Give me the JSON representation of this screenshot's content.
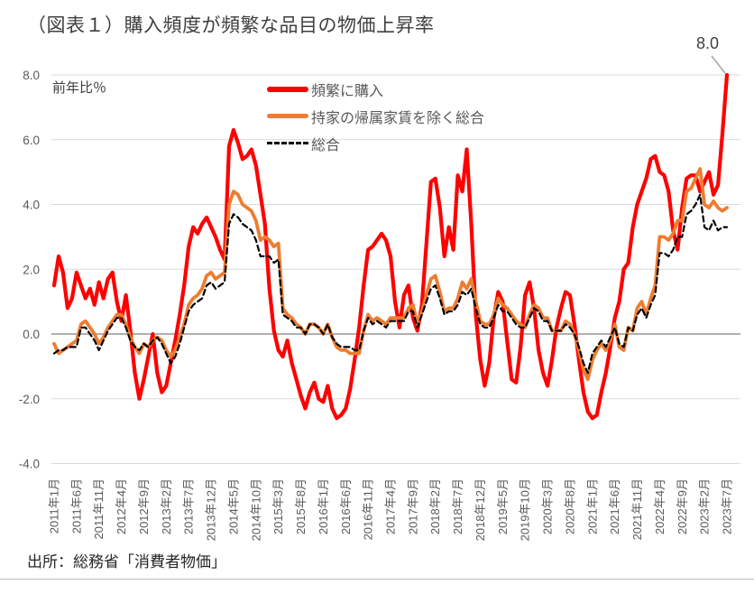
{
  "page": {
    "title": "（図表１）購入頻度が頻繁な品目の物価上昇率",
    "source": "出所：総務省「消費者物価」"
  },
  "annotation": {
    "text": "8.0"
  },
  "colors": {
    "red_series": "#ff0000",
    "orange_series": "#ed7d31",
    "black_series": "#000000",
    "gridline": "#d9d9d9",
    "zero_axis": "#7f7f7f",
    "tick_text": "#595959",
    "title_text": "#3f3f3f",
    "leader_line": "#a6a6a6"
  },
  "chart_data": {
    "type": "line",
    "title": "（図表１）購入頻度が頻繁な品目の物価上昇率",
    "xlabel": "",
    "ylabel": "前年比％",
    "ylim": [
      -4.0,
      8.0
    ],
    "yticks": [
      8,
      6,
      4,
      2,
      0,
      -2,
      -4
    ],
    "ytick_labels": [
      "8.0",
      "6.0",
      "4.0",
      "2.0",
      "0.0",
      "-2.0",
      "-4.0"
    ],
    "grid": "horizontal",
    "legend_position": "top-inside",
    "x_frequency": "monthly",
    "x_start": "2011年1月",
    "x_end": "2023年7月",
    "xtick_month_indices": [
      0,
      5,
      10,
      15,
      20,
      25,
      30,
      35,
      40,
      45,
      50,
      55,
      60,
      65,
      70,
      75,
      80,
      85,
      90,
      95,
      100,
      105,
      110,
      115,
      120,
      125,
      130,
      135,
      140,
      145,
      150
    ],
    "xtick_labels": [
      "2011年1月",
      "2011年6月",
      "2011年11月",
      "2012年4月",
      "2012年9月",
      "2013年2月",
      "2013年7月",
      "2013年12月",
      "2014年5月",
      "2014年10月",
      "2015年3月",
      "2015年8月",
      "2016年1月",
      "2016年6月",
      "2016年11月",
      "2017年4月",
      "2017年9月",
      "2018年2月",
      "2018年7月",
      "2018年12月",
      "2019年5月",
      "2019年10月",
      "2020年3月",
      "2020年8月",
      "2021年1月",
      "2021年6月",
      "2021年11月",
      "2022年4月",
      "2022年9月",
      "2023年2月",
      "2023年7月"
    ],
    "annotation": {
      "text": "8.0",
      "month_index": 150,
      "value": 8.0
    },
    "series": [
      {
        "name": "頻繁に購入",
        "color": "#ff0000",
        "width": 4.2,
        "dash": null,
        "values": [
          1.5,
          2.4,
          1.9,
          0.8,
          1.1,
          1.9,
          1.5,
          1.1,
          1.4,
          0.9,
          1.6,
          1.1,
          1.7,
          1.9,
          1.0,
          0.4,
          1.2,
          0.1,
          -1.2,
          -2.0,
          -1.4,
          -0.7,
          0.0,
          -1.2,
          -1.8,
          -1.6,
          -0.9,
          -0.2,
          0.6,
          1.5,
          2.7,
          3.3,
          3.1,
          3.4,
          3.6,
          3.3,
          3.0,
          2.6,
          2.3,
          5.8,
          6.3,
          5.9,
          5.4,
          5.5,
          5.7,
          5.2,
          4.3,
          3.4,
          1.4,
          0.1,
          -0.5,
          -0.7,
          -0.2,
          -0.9,
          -1.4,
          -1.9,
          -2.3,
          -1.8,
          -1.5,
          -2.0,
          -2.1,
          -1.6,
          -2.3,
          -2.6,
          -2.5,
          -2.3,
          -1.7,
          -0.8,
          0.2,
          1.5,
          2.6,
          2.7,
          2.9,
          3.1,
          2.9,
          2.4,
          1.0,
          0.2,
          1.2,
          1.5,
          0.5,
          0.1,
          0.9,
          2.8,
          4.7,
          4.8,
          3.9,
          2.4,
          3.3,
          2.6,
          4.9,
          4.4,
          5.7,
          3.4,
          0.6,
          -0.8,
          -1.6,
          -0.9,
          0.5,
          1.3,
          1.0,
          -0.2,
          -1.4,
          -1.5,
          -0.4,
          1.2,
          1.6,
          0.8,
          -0.5,
          -1.2,
          -1.6,
          -0.8,
          0.2,
          0.8,
          1.3,
          1.2,
          0.3,
          -0.8,
          -1.8,
          -2.4,
          -2.6,
          -2.5,
          -1.8,
          -1.2,
          -0.4,
          0.5,
          1.0,
          2.0,
          2.2,
          3.3,
          4.0,
          4.4,
          4.8,
          5.4,
          5.5,
          5.0,
          4.9,
          4.4,
          3.2,
          2.6,
          3.9,
          4.8,
          4.9,
          4.9,
          4.4,
          4.7,
          5.0,
          4.3,
          4.6,
          6.2,
          8.0
        ]
      },
      {
        "name": "持家の帰属家賃を除く総合",
        "color": "#ed7d31",
        "width": 3.8,
        "dash": null,
        "values": [
          -0.3,
          -0.6,
          -0.5,
          -0.4,
          -0.3,
          -0.2,
          0.3,
          0.4,
          0.2,
          0.0,
          -0.3,
          -0.1,
          0.2,
          0.4,
          0.6,
          0.6,
          0.3,
          -0.1,
          -0.4,
          -0.6,
          -0.3,
          -0.4,
          -0.2,
          -0.1,
          -0.2,
          -0.5,
          -0.7,
          -0.5,
          -0.1,
          0.3,
          0.9,
          1.1,
          1.2,
          1.4,
          1.8,
          1.9,
          1.7,
          1.8,
          1.9,
          4.0,
          4.4,
          4.3,
          4.0,
          3.9,
          3.8,
          3.5,
          2.9,
          3.0,
          2.9,
          2.7,
          2.8,
          0.8,
          0.6,
          0.5,
          0.3,
          0.2,
          0.0,
          0.3,
          0.3,
          0.2,
          0.0,
          0.3,
          -0.1,
          -0.4,
          -0.5,
          -0.5,
          -0.6,
          -0.6,
          -0.6,
          0.1,
          0.6,
          0.4,
          0.5,
          0.4,
          0.3,
          0.5,
          0.5,
          0.5,
          0.5,
          0.8,
          0.9,
          0.3,
          0.7,
          1.2,
          1.7,
          1.8,
          1.3,
          0.7,
          0.8,
          0.8,
          1.1,
          1.6,
          1.4,
          1.7,
          1.0,
          0.4,
          0.3,
          0.3,
          0.6,
          1.1,
          0.9,
          0.8,
          0.6,
          0.4,
          0.3,
          0.2,
          0.6,
          0.9,
          0.8,
          0.5,
          0.5,
          0.1,
          0.1,
          0.1,
          0.4,
          0.3,
          0.0,
          -0.5,
          -1.1,
          -1.4,
          -0.8,
          -0.5,
          -0.3,
          -0.5,
          -0.2,
          0.3,
          -0.4,
          -0.5,
          0.2,
          0.1,
          0.8,
          1.0,
          0.6,
          1.1,
          1.5,
          3.0,
          3.0,
          2.9,
          3.1,
          3.5,
          3.5,
          4.4,
          4.5,
          4.8,
          5.1,
          4.0,
          3.9,
          4.1,
          3.9,
          3.8,
          3.9
        ]
      },
      {
        "name": "総合",
        "color": "#000000",
        "width": 2.2,
        "dash": "6,4",
        "values": [
          -0.6,
          -0.5,
          -0.5,
          -0.4,
          -0.4,
          -0.4,
          0.2,
          0.2,
          0.0,
          -0.2,
          -0.5,
          -0.2,
          0.1,
          0.3,
          0.5,
          0.5,
          0.2,
          -0.2,
          -0.4,
          -0.5,
          -0.3,
          -0.4,
          -0.2,
          -0.1,
          -0.3,
          -0.6,
          -0.9,
          -0.7,
          -0.3,
          0.2,
          0.7,
          0.9,
          1.0,
          1.1,
          1.5,
          1.6,
          1.4,
          1.5,
          1.6,
          3.4,
          3.7,
          3.6,
          3.4,
          3.3,
          3.2,
          2.9,
          2.4,
          2.4,
          2.4,
          2.2,
          2.3,
          0.6,
          0.5,
          0.4,
          0.2,
          0.2,
          0.0,
          0.3,
          0.3,
          0.2,
          0.0,
          0.3,
          -0.1,
          -0.3,
          -0.4,
          -0.4,
          -0.4,
          -0.5,
          -0.5,
          0.1,
          0.5,
          0.3,
          0.4,
          0.3,
          0.2,
          0.4,
          0.4,
          0.4,
          0.4,
          0.7,
          0.7,
          0.2,
          0.6,
          1.0,
          1.4,
          1.5,
          1.1,
          0.6,
          0.7,
          0.7,
          0.9,
          1.3,
          1.2,
          1.4,
          0.8,
          0.3,
          0.2,
          0.2,
          0.5,
          0.9,
          0.7,
          0.7,
          0.5,
          0.3,
          0.2,
          0.2,
          0.5,
          0.8,
          0.7,
          0.4,
          0.4,
          0.1,
          0.1,
          0.1,
          0.3,
          0.2,
          0.0,
          -0.4,
          -0.9,
          -1.2,
          -0.6,
          -0.4,
          -0.2,
          -0.4,
          -0.1,
          0.2,
          -0.3,
          -0.4,
          0.2,
          0.1,
          0.6,
          0.8,
          0.5,
          0.9,
          1.2,
          2.5,
          2.5,
          2.4,
          2.6,
          3.0,
          3.0,
          3.7,
          3.8,
          4.0,
          4.3,
          3.3,
          3.2,
          3.5,
          3.2,
          3.3,
          3.3
        ]
      }
    ]
  }
}
